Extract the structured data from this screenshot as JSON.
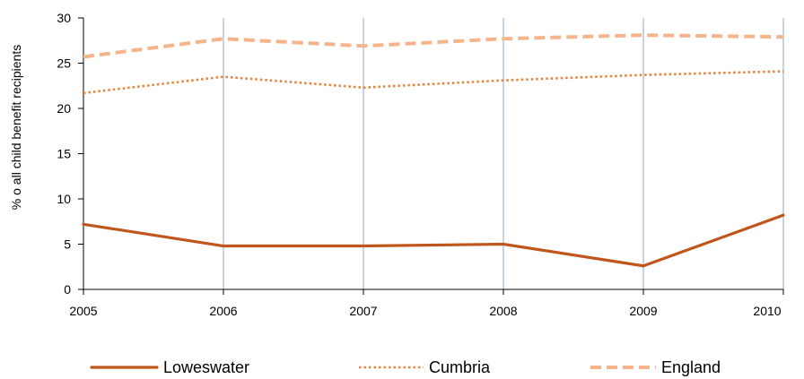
{
  "chart_data": {
    "type": "line",
    "title": "",
    "xlabel": "",
    "ylabel": "% o all child benefit recipients",
    "x": [
      "2005",
      "2006",
      "2007",
      "2008",
      "2009",
      "2010"
    ],
    "ylim": [
      0,
      30
    ],
    "yticks": [
      "0",
      "5",
      "10",
      "15",
      "20",
      "25",
      "30"
    ],
    "grid": "vertical",
    "legend": "bottom",
    "series": [
      {
        "name": "Loweswater",
        "values": [
          7.2,
          4.8,
          4.8,
          5.0,
          2.6,
          8.2
        ],
        "color": "#c0561c",
        "style": "solid"
      },
      {
        "name": "Cumbria",
        "values": [
          21.7,
          23.5,
          22.3,
          23.1,
          23.7,
          24.1
        ],
        "color": "#e8843a",
        "style": "dotted"
      },
      {
        "name": "England",
        "values": [
          25.7,
          27.7,
          26.9,
          27.7,
          28.1,
          27.9
        ],
        "color": "#f5b48a",
        "style": "dashed"
      }
    ],
    "grid_color": "#b7c9dd",
    "axis_color": "#000000"
  }
}
